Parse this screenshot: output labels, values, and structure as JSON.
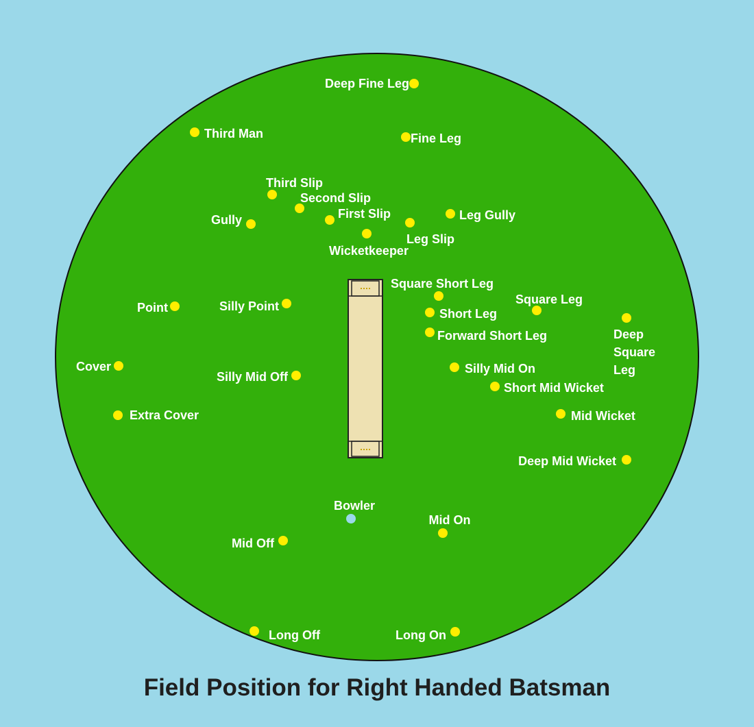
{
  "title": "Field Position for Right Handed Batsman",
  "colors": {
    "background": "#9bd8e9",
    "field": "#33b00b",
    "pitch": "#eee1b2",
    "fielder_marker": "#ffee00",
    "bowler_marker": "#9bd8e9",
    "label_text": "#ffffff"
  },
  "positions": [
    {
      "id": "deep-fine-leg",
      "label": "Deep Fine Leg"
    },
    {
      "id": "third-man",
      "label": "Third Man"
    },
    {
      "id": "fine-leg",
      "label": "Fine Leg"
    },
    {
      "id": "third-slip",
      "label": "Third Slip"
    },
    {
      "id": "second-slip",
      "label": "Second Slip"
    },
    {
      "id": "first-slip",
      "label": "First Slip"
    },
    {
      "id": "gully",
      "label": "Gully"
    },
    {
      "id": "leg-gully",
      "label": "Leg Gully"
    },
    {
      "id": "leg-slip",
      "label": "Leg Slip"
    },
    {
      "id": "wicketkeeper",
      "label": "Wicketkeeper"
    },
    {
      "id": "square-short-leg",
      "label": "Square Short Leg"
    },
    {
      "id": "square-leg",
      "label": "Square Leg"
    },
    {
      "id": "point",
      "label": "Point"
    },
    {
      "id": "silly-point",
      "label": "Silly Point"
    },
    {
      "id": "short-leg",
      "label": "Short Leg"
    },
    {
      "id": "deep-square-leg",
      "label": "Deep\nSquare\nLeg"
    },
    {
      "id": "forward-short-leg",
      "label": "Forward Short Leg"
    },
    {
      "id": "cover",
      "label": "Cover"
    },
    {
      "id": "silly-mid-off",
      "label": "Silly Mid Off"
    },
    {
      "id": "silly-mid-on",
      "label": "Silly Mid On"
    },
    {
      "id": "short-mid-wicket",
      "label": "Short Mid Wicket"
    },
    {
      "id": "extra-cover",
      "label": "Extra Cover"
    },
    {
      "id": "mid-wicket",
      "label": "Mid Wicket"
    },
    {
      "id": "deep-mid-wicket",
      "label": "Deep Mid Wicket"
    },
    {
      "id": "bowler",
      "label": "Bowler"
    },
    {
      "id": "mid-on",
      "label": "Mid On"
    },
    {
      "id": "mid-off",
      "label": "Mid Off"
    },
    {
      "id": "long-off",
      "label": "Long Off"
    },
    {
      "id": "long-on",
      "label": "Long On"
    }
  ]
}
